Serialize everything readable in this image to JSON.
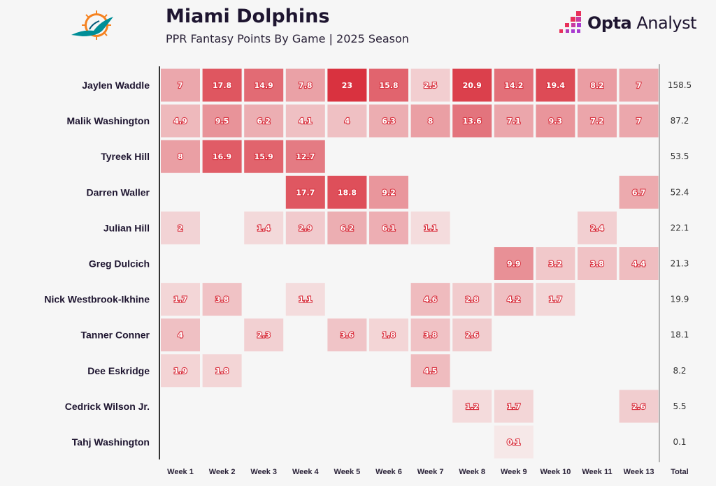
{
  "header": {
    "title": "Miami Dolphins",
    "subtitle": "PPR Fantasy Points By Game | 2025 Season",
    "brand_bold": "Opta",
    "brand_light": " Analyst",
    "team_logo": "miami-dolphins-logo"
  },
  "colors": {
    "low": "#f6eaea",
    "high": "#d9323f",
    "text_outline": "#d9323f",
    "axis": "#333333"
  },
  "chart_data": {
    "type": "heatmap",
    "title": "PPR Fantasy Points By Game | 2025 Season",
    "columns": [
      "Week 1",
      "Week 2",
      "Week 3",
      "Week 4",
      "Week 5",
      "Week 6",
      "Week 7",
      "Week 8",
      "Week 9",
      "Week 10",
      "Week 11",
      "Week 13"
    ],
    "total_label": "Total",
    "rows": [
      {
        "player": "Jaylen Waddle",
        "values": [
          7,
          17.8,
          14.9,
          7.8,
          23,
          15.8,
          2.5,
          20.9,
          14.2,
          19.4,
          8.2,
          7
        ],
        "total": "158.5"
      },
      {
        "player": "Malik Washington",
        "values": [
          4.9,
          9.5,
          6.2,
          4.1,
          4,
          6.3,
          8,
          13.6,
          7.1,
          9.3,
          7.2,
          7
        ],
        "total": "87.2"
      },
      {
        "player": "Tyreek Hill",
        "values": [
          8,
          16.9,
          15.9,
          12.7,
          null,
          null,
          null,
          null,
          null,
          null,
          null,
          null
        ],
        "total": "53.5"
      },
      {
        "player": "Darren Waller",
        "values": [
          null,
          null,
          null,
          17.7,
          18.8,
          9.2,
          null,
          null,
          null,
          null,
          null,
          6.7
        ],
        "total": "52.4"
      },
      {
        "player": "Julian Hill",
        "values": [
          2,
          null,
          1.4,
          2.9,
          6.2,
          6.1,
          1.1,
          null,
          null,
          null,
          2.4,
          null
        ],
        "total": "22.1"
      },
      {
        "player": "Greg Dulcich",
        "values": [
          null,
          null,
          null,
          null,
          null,
          null,
          null,
          null,
          9.9,
          3.2,
          3.8,
          4.4
        ],
        "total": "21.3"
      },
      {
        "player": "Nick Westbrook-Ikhine",
        "values": [
          1.7,
          3.8,
          null,
          1.1,
          null,
          null,
          4.6,
          2.8,
          4.2,
          1.7,
          null,
          null
        ],
        "total": "19.9"
      },
      {
        "player": "Tanner Conner",
        "values": [
          4,
          null,
          2.3,
          null,
          3.6,
          1.8,
          3.8,
          2.6,
          null,
          null,
          null,
          null
        ],
        "total": "18.1"
      },
      {
        "player": "Dee Eskridge",
        "values": [
          1.9,
          1.8,
          null,
          null,
          null,
          null,
          4.5,
          null,
          null,
          null,
          null,
          null
        ],
        "total": "8.2"
      },
      {
        "player": "Cedrick Wilson Jr.",
        "values": [
          null,
          null,
          null,
          null,
          null,
          null,
          null,
          1.2,
          1.7,
          null,
          null,
          2.6
        ],
        "total": "5.5"
      },
      {
        "player": "Tahj Washington",
        "values": [
          null,
          null,
          null,
          null,
          null,
          null,
          null,
          null,
          0.1,
          null,
          null,
          null
        ],
        "total": "0.1"
      }
    ],
    "color_range": [
      0,
      23
    ],
    "legend": "none"
  }
}
